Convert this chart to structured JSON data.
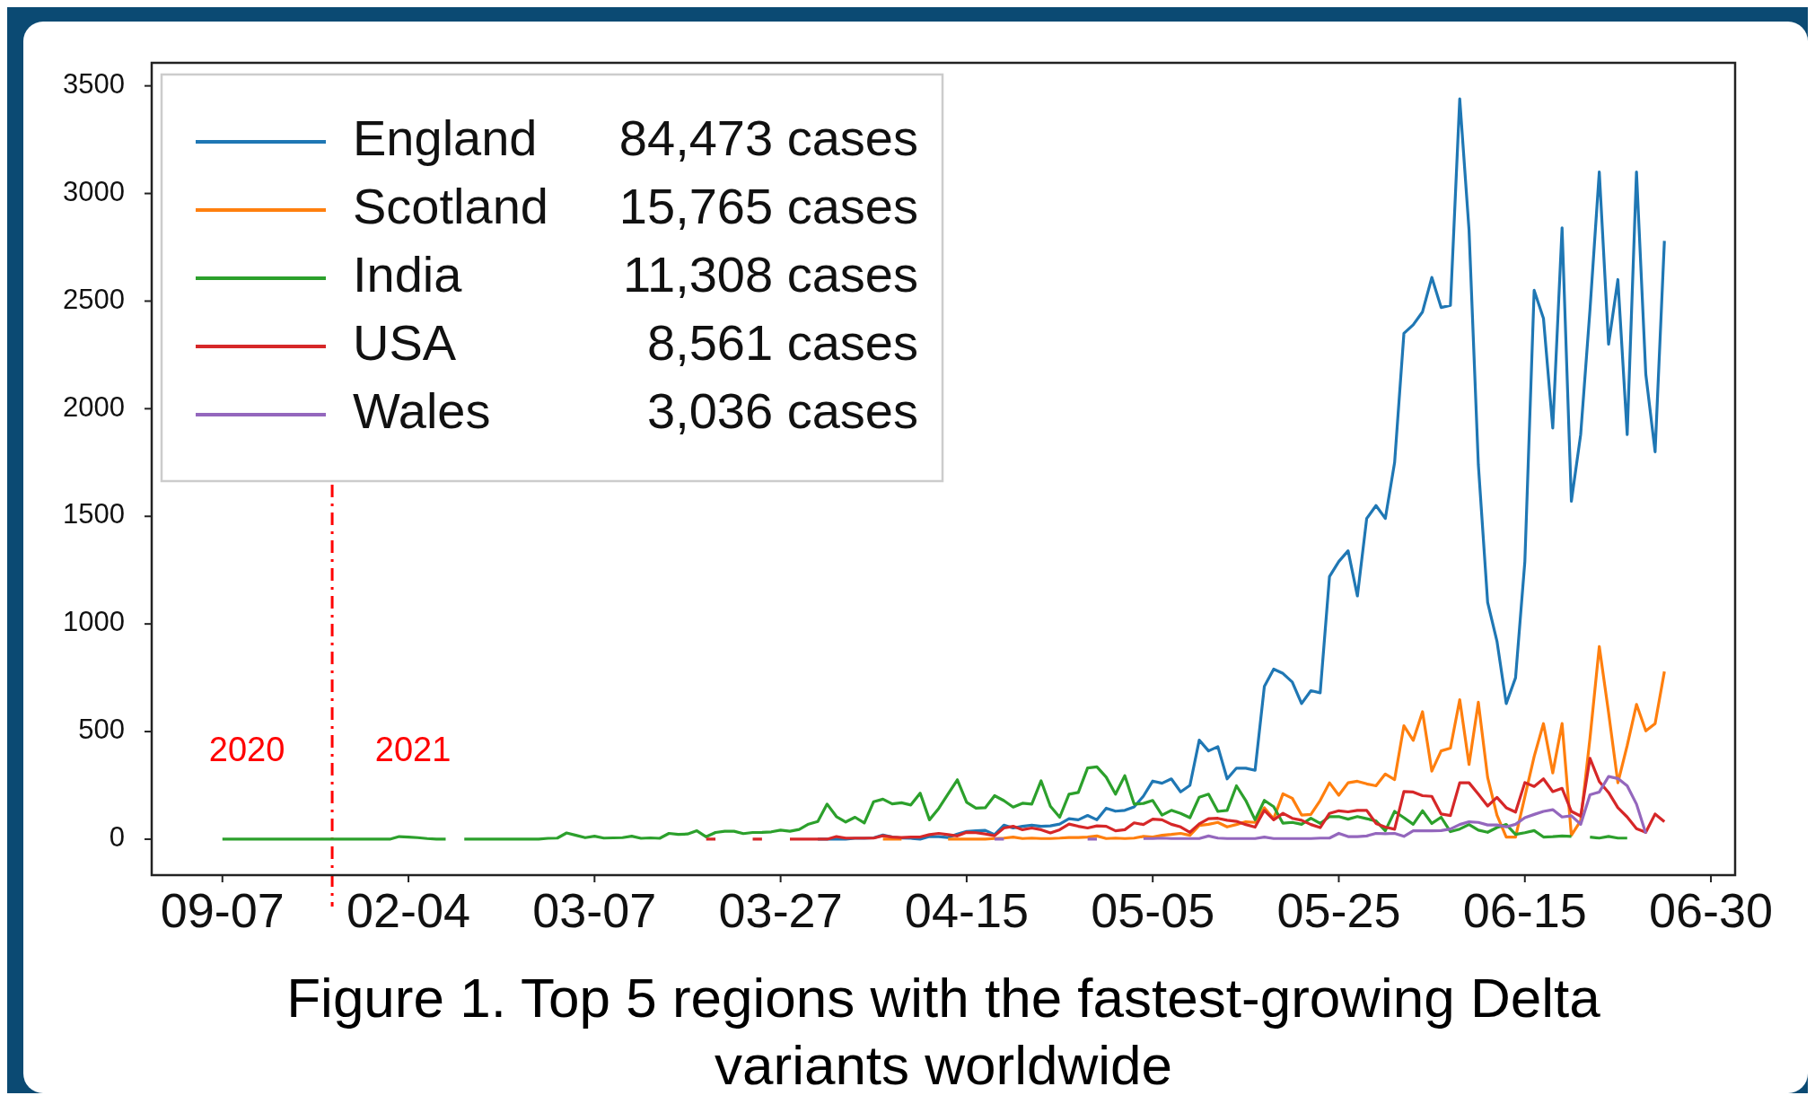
{
  "chart_data": {
    "type": "line",
    "title": "Figure 1. Top 5 regions with the fastest-growing Delta variants worldwide",
    "categories": [
      "09-07",
      null,
      null,
      null,
      null,
      null,
      null,
      null,
      null,
      null,
      null,
      null,
      null,
      null,
      null,
      null,
      null,
      null,
      null,
      null,
      "02-04",
      null,
      null,
      null,
      null,
      null,
      null,
      null,
      null,
      null,
      null,
      null,
      null,
      null,
      null,
      null,
      null,
      null,
      null,
      null,
      "03-07",
      null,
      null,
      null,
      null,
      null,
      null,
      null,
      null,
      null,
      null,
      null,
      null,
      null,
      null,
      null,
      null,
      null,
      null,
      null,
      "03-27",
      null,
      null,
      null,
      null,
      null,
      null,
      null,
      null,
      null,
      null,
      null,
      null,
      null,
      null,
      null,
      null,
      null,
      null,
      null,
      "04-15",
      null,
      null,
      null,
      null,
      null,
      null,
      null,
      null,
      null,
      null,
      null,
      null,
      null,
      null,
      null,
      null,
      null,
      null,
      null,
      "05-05",
      null,
      null,
      null,
      null,
      null,
      null,
      null,
      null,
      null,
      null,
      null,
      null,
      null,
      null,
      null,
      null,
      null,
      null,
      null,
      "05-25",
      null,
      null,
      null,
      null,
      null,
      null,
      null,
      null,
      null,
      null,
      null,
      null,
      null,
      null,
      null,
      null,
      null,
      null,
      null,
      "06-15",
      null,
      null,
      null,
      null,
      null,
      null,
      null,
      null,
      null,
      null,
      null,
      null,
      null,
      null,
      null,
      null,
      null,
      null,
      null,
      "06-30"
    ],
    "ylim": [
      -167,
      3607
    ],
    "yticks": [
      0,
      500,
      1000,
      1500,
      2000,
      2500,
      3000,
      3500
    ],
    "legend": "top left",
    "grid": false,
    "marker": "none",
    "line_style": "solid",
    "series": [
      {
        "name": "England",
        "color": "#1f77b4",
        "values": [
          null,
          null,
          null,
          null,
          null,
          null,
          null,
          null,
          null,
          null,
          null,
          null,
          null,
          null,
          null,
          null,
          null,
          null,
          null,
          null,
          null,
          null,
          null,
          null,
          null,
          null,
          null,
          null,
          null,
          null,
          null,
          null,
          null,
          null,
          null,
          null,
          null,
          null,
          null,
          null,
          null,
          null,
          null,
          null,
          null,
          null,
          null,
          null,
          null,
          null,
          null,
          null,
          null,
          null,
          null,
          null,
          null,
          null,
          null,
          null,
          null,
          null,
          null,
          null,
          0,
          0,
          0,
          0,
          4,
          4,
          6,
          19,
          10,
          5,
          4,
          0,
          12,
          12,
          8,
          24,
          36,
          39,
          41,
          21,
          65,
          52,
          60,
          65,
          60,
          62,
          70,
          95,
          90,
          110,
          90,
          144,
          130,
          134,
          150,
          200,
          270,
          260,
          280,
          220,
          250,
          460,
          410,
          430,
          280,
          330,
          330,
          320,
          710,
          790,
          770,
          730,
          630,
          690,
          680,
          1220,
          1290,
          1340,
          1130,
          1490,
          1550,
          1490,
          1750,
          2350,
          2390,
          2450,
          2610,
          2470,
          2480,
          3440,
          2830,
          1740,
          1100,
          920,
          630,
          750,
          1290,
          2550,
          2420,
          1910,
          2840,
          1570,
          1880,
          2460,
          3100,
          2300,
          2600,
          1880,
          3100,
          2160,
          1800,
          2780,
          null,
          null,
          null,
          null,
          null
        ]
      },
      {
        "name": "Scotland",
        "color": "#ff7f0e",
        "values": [
          null,
          null,
          null,
          null,
          null,
          null,
          null,
          null,
          null,
          null,
          null,
          null,
          null,
          null,
          null,
          null,
          null,
          null,
          null,
          null,
          null,
          null,
          null,
          null,
          null,
          null,
          null,
          null,
          null,
          null,
          null,
          null,
          null,
          null,
          null,
          null,
          null,
          null,
          null,
          null,
          null,
          null,
          null,
          null,
          null,
          null,
          null,
          null,
          null,
          null,
          null,
          null,
          null,
          null,
          null,
          null,
          null,
          null,
          null,
          null,
          null,
          null,
          null,
          null,
          null,
          null,
          null,
          null,
          null,
          null,
          null,
          0,
          0,
          0,
          null,
          null,
          null,
          null,
          0,
          0,
          0,
          0,
          0,
          3,
          5,
          10,
          3,
          5,
          3,
          3,
          5,
          8,
          8,
          10,
          15,
          3,
          5,
          3,
          5,
          13,
          10,
          18,
          22,
          27,
          18,
          64,
          69,
          78,
          57,
          68,
          81,
          78,
          146,
          95,
          211,
          190,
          112,
          115,
          180,
          262,
          204,
          262,
          269,
          257,
          248,
          303,
          277,
          527,
          459,
          592,
          316,
          410,
          423,
          648,
          347,
          636,
          287,
          112,
          10,
          10,
          197,
          384,
          537,
          308,
          537,
          18,
          86,
          469,
          895,
          588,
          262,
          435,
          626,
          503,
          537,
          779,
          null,
          null,
          null,
          null,
          null
        ]
      },
      {
        "name": "India",
        "color": "#2ca02c",
        "values": [
          0,
          0,
          0,
          0,
          0,
          0,
          0,
          0,
          0,
          0,
          0,
          0,
          0,
          0,
          0,
          0,
          0,
          0,
          0,
          12,
          10,
          7,
          3,
          0,
          0,
          null,
          0,
          0,
          0,
          0,
          0,
          0,
          0,
          0,
          0,
          4,
          5,
          29,
          18,
          7,
          14,
          5,
          6,
          7,
          14,
          4,
          6,
          4,
          27,
          22,
          24,
          39,
          11,
          31,
          37,
          37,
          26,
          31,
          32,
          34,
          42,
          37,
          45,
          70,
          82,
          163,
          105,
          80,
          102,
          75,
          174,
          186,
          164,
          169,
          159,
          214,
          90,
          143,
          210,
          276,
          171,
          144,
          146,
          202,
          179,
          149,
          167,
          163,
          271,
          153,
          102,
          209,
          217,
          331,
          336,
          288,
          209,
          295,
          163,
          166,
          180,
          112,
          134,
          120,
          100,
          195,
          209,
          129,
          134,
          248,
          180,
          90,
          180,
          151,
          74,
          78,
          69,
          97,
          73,
          105,
          105,
          93,
          105,
          95,
          85,
          39,
          129,
          100,
          69,
          132,
          73,
          102,
          35,
          47,
          68,
          42,
          32,
          54,
          68,
          22,
          30,
          40,
          10,
          12,
          15,
          13,
          null,
          10,
          5,
          13,
          5,
          5,
          null,
          null,
          null,
          null,
          null,
          null,
          null,
          null,
          null
        ]
      },
      {
        "name": "USA",
        "color": "#d62728",
        "values": [
          null,
          null,
          null,
          null,
          null,
          null,
          null,
          null,
          null,
          null,
          null,
          null,
          null,
          null,
          null,
          null,
          null,
          null,
          null,
          null,
          null,
          null,
          null,
          null,
          null,
          null,
          null,
          null,
          null,
          null,
          null,
          null,
          null,
          null,
          null,
          null,
          null,
          null,
          null,
          null,
          null,
          null,
          null,
          null,
          null,
          null,
          null,
          null,
          null,
          null,
          null,
          null,
          0,
          0,
          null,
          null,
          null,
          0,
          0,
          null,
          null,
          0,
          0,
          0,
          0,
          0,
          12,
          5,
          5,
          5,
          5,
          16,
          10,
          8,
          10,
          10,
          21,
          27,
          21,
          15,
          32,
          30,
          24,
          16,
          52,
          60,
          44,
          52,
          44,
          29,
          44,
          70,
          60,
          52,
          62,
          60,
          39,
          44,
          76,
          68,
          93,
          90,
          69,
          57,
          32,
          71,
          95,
          97,
          88,
          83,
          68,
          56,
          134,
          90,
          120,
          97,
          88,
          68,
          54,
          120,
          132,
          127,
          134,
          134,
          73,
          56,
          46,
          221,
          219,
          202,
          199,
          117,
          110,
          262,
          262,
          209,
          154,
          194,
          146,
          126,
          263,
          245,
          280,
          221,
          236,
          129,
          107,
          376,
          268,
          217,
          146,
          103,
          49,
          32,
          117,
          81,
          null,
          null,
          null,
          null,
          null
        ]
      },
      {
        "name": "Wales",
        "color": "#9467bd",
        "values": [
          null,
          null,
          null,
          null,
          null,
          null,
          null,
          null,
          null,
          null,
          null,
          null,
          null,
          null,
          null,
          null,
          null,
          null,
          null,
          null,
          null,
          null,
          null,
          null,
          null,
          null,
          null,
          null,
          null,
          null,
          null,
          null,
          null,
          null,
          null,
          null,
          null,
          null,
          null,
          null,
          null,
          null,
          null,
          null,
          null,
          null,
          null,
          null,
          null,
          null,
          null,
          null,
          null,
          null,
          null,
          null,
          null,
          null,
          null,
          null,
          null,
          null,
          null,
          null,
          null,
          null,
          null,
          null,
          null,
          null,
          null,
          null,
          null,
          null,
          null,
          null,
          null,
          null,
          null,
          null,
          null,
          null,
          null,
          0,
          0,
          null,
          null,
          null,
          null,
          null,
          null,
          null,
          null,
          0,
          0,
          null,
          null,
          null,
          null,
          3,
          3,
          5,
          3,
          3,
          3,
          3,
          15,
          5,
          3,
          3,
          3,
          3,
          10,
          3,
          3,
          3,
          3,
          3,
          5,
          5,
          27,
          12,
          12,
          15,
          27,
          25,
          27,
          13,
          39,
          39,
          39,
          40,
          47,
          68,
          81,
          78,
          66,
          66,
          57,
          69,
          100,
          115,
          129,
          137,
          103,
          109,
          69,
          206,
          219,
          291,
          282,
          248,
          163,
          27,
          null,
          null,
          null,
          null,
          null,
          null,
          null
        ]
      }
    ],
    "annotations": [
      "2020",
      "2021",
      "84,473 cases",
      "15,765 cases",
      "11,308 cases",
      "8,561 cases",
      "3,036 cases"
    ]
  }
}
